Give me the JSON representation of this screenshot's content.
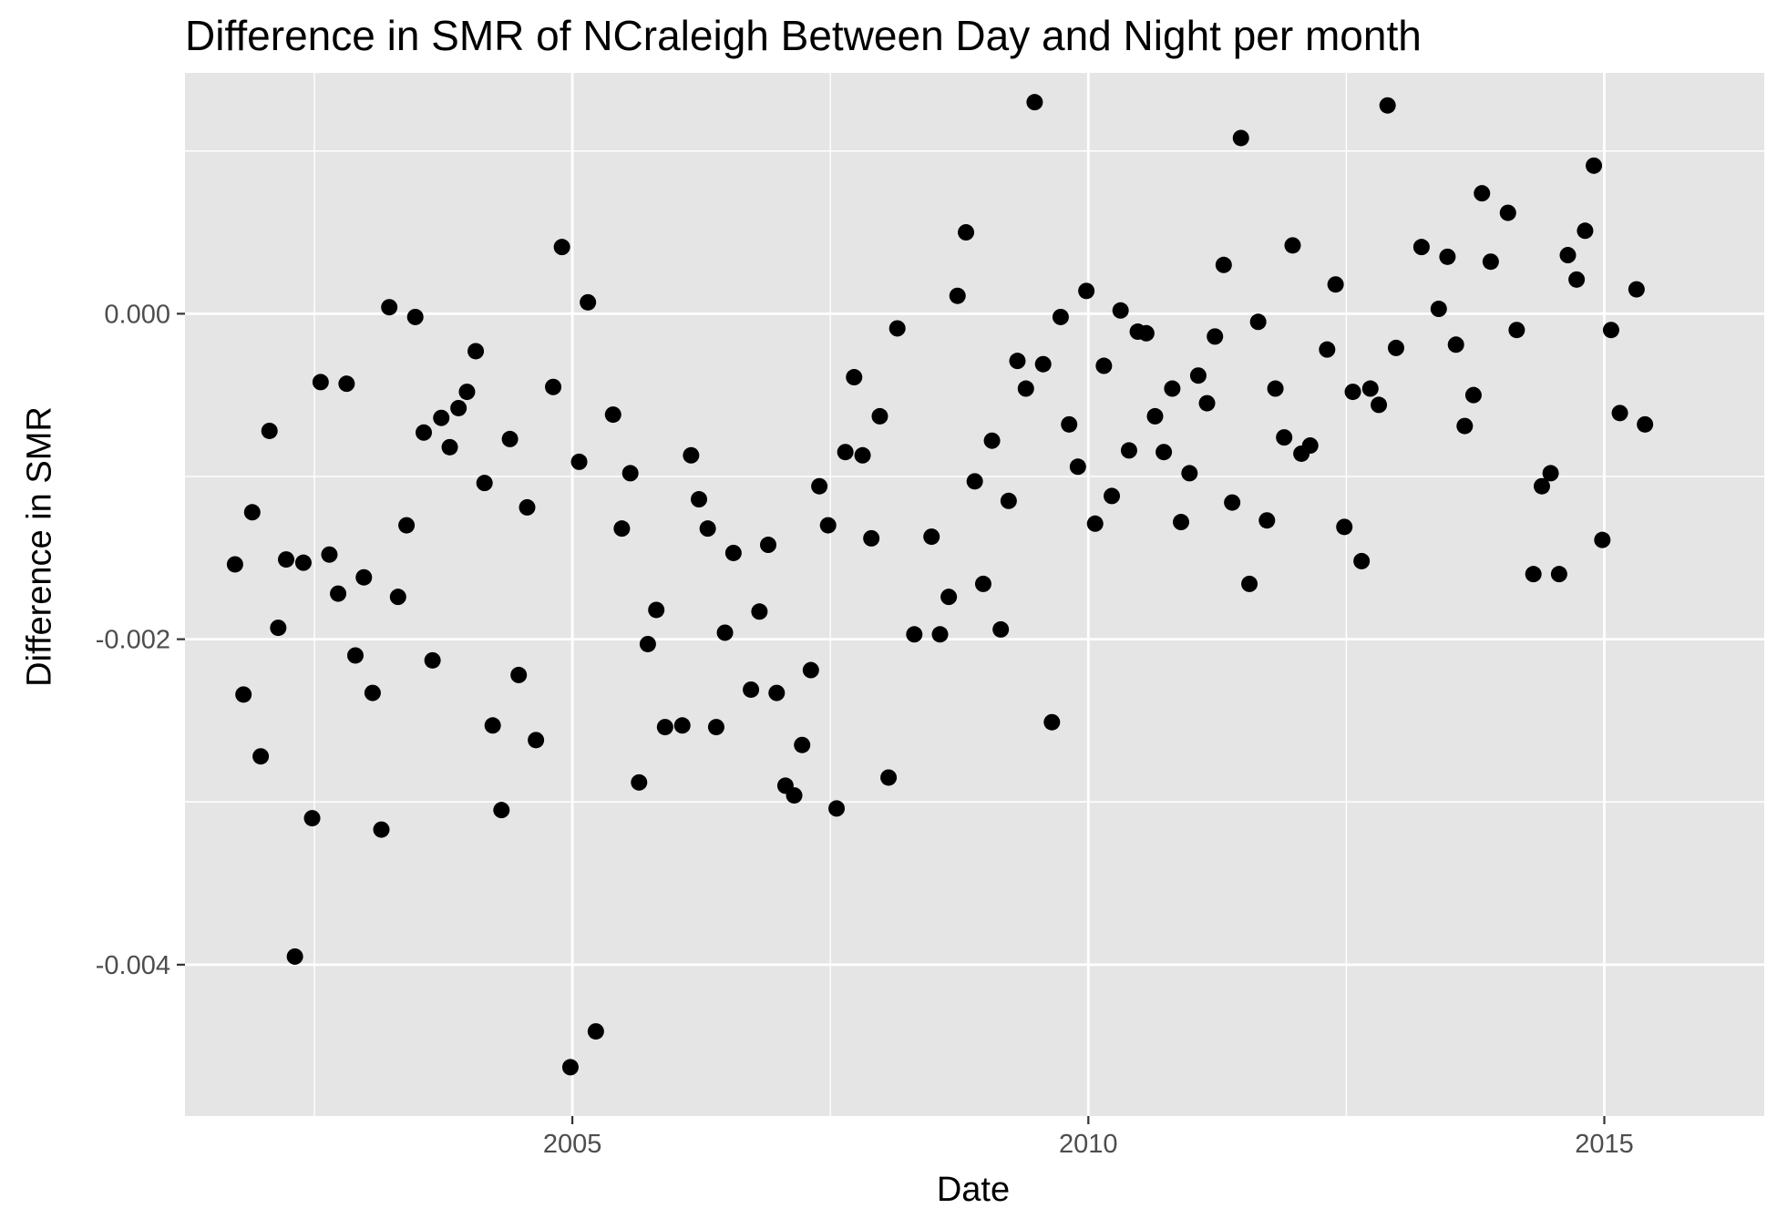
{
  "chart_data": {
    "type": "scatter",
    "title": "Difference in SMR of NCraleigh Between Day and Night per month",
    "xlabel": "Date",
    "ylabel": "Difference in SMR",
    "xlim": [
      "2001-04-01",
      "2016-07-20"
    ],
    "ylim": [
      -0.00493,
      0.00148
    ],
    "x_ticks": [
      {
        "value": "2005-01-01",
        "label": "2005"
      },
      {
        "value": "2010-01-01",
        "label": "2010"
      },
      {
        "value": "2015-01-01",
        "label": "2015"
      }
    ],
    "y_ticks": [
      {
        "value": 0.0,
        "label": "0.000"
      },
      {
        "value": -0.002,
        "label": "-0.002"
      },
      {
        "value": -0.004,
        "label": "-0.004"
      }
    ],
    "grid": true,
    "legend": "none",
    "colors": {
      "panel": "#e5e5e5",
      "grid": "#ffffff",
      "point": "#000000",
      "tick_text": "#4d4d4d"
    },
    "points": [
      {
        "x": "2001-09-25",
        "y": -0.00154
      },
      {
        "x": "2001-10-25",
        "y": -0.00234
      },
      {
        "x": "2001-11-25",
        "y": -0.00122
      },
      {
        "x": "2001-12-25",
        "y": -0.00272
      },
      {
        "x": "2002-01-25",
        "y": -0.00072
      },
      {
        "x": "2002-02-25",
        "y": -0.00193
      },
      {
        "x": "2002-03-25",
        "y": -0.00151
      },
      {
        "x": "2002-04-25",
        "y": -0.00395
      },
      {
        "x": "2002-05-25",
        "y": -0.00153
      },
      {
        "x": "2002-06-25",
        "y": -0.0031
      },
      {
        "x": "2002-07-25",
        "y": -0.00042
      },
      {
        "x": "2002-08-25",
        "y": -0.00148
      },
      {
        "x": "2002-09-25",
        "y": -0.00172
      },
      {
        "x": "2002-10-25",
        "y": -0.00043
      },
      {
        "x": "2002-11-25",
        "y": -0.0021
      },
      {
        "x": "2002-12-25",
        "y": -0.00162
      },
      {
        "x": "2003-01-25",
        "y": -0.00233
      },
      {
        "x": "2003-02-25",
        "y": -0.00317
      },
      {
        "x": "2003-03-25",
        "y": 4e-05
      },
      {
        "x": "2003-04-25",
        "y": -0.00174
      },
      {
        "x": "2003-05-25",
        "y": -0.0013
      },
      {
        "x": "2003-06-25",
        "y": -2e-05
      },
      {
        "x": "2003-07-25",
        "y": -0.00073
      },
      {
        "x": "2003-08-25",
        "y": -0.00213
      },
      {
        "x": "2003-09-25",
        "y": -0.00064
      },
      {
        "x": "2003-10-25",
        "y": -0.00082
      },
      {
        "x": "2003-11-25",
        "y": -0.00058
      },
      {
        "x": "2003-12-25",
        "y": -0.00048
      },
      {
        "x": "2004-01-25",
        "y": -0.00023
      },
      {
        "x": "2004-02-25",
        "y": -0.00104
      },
      {
        "x": "2004-03-25",
        "y": -0.00253
      },
      {
        "x": "2004-04-25",
        "y": -0.00305
      },
      {
        "x": "2004-05-25",
        "y": -0.00077
      },
      {
        "x": "2004-06-25",
        "y": -0.00222
      },
      {
        "x": "2004-07-25",
        "y": -0.00119
      },
      {
        "x": "2004-08-25",
        "y": -0.00262
      },
      {
        "x": "2004-10-25",
        "y": -0.00045
      },
      {
        "x": "2004-11-25",
        "y": 0.00041
      },
      {
        "x": "2004-12-25",
        "y": -0.00463
      },
      {
        "x": "2005-01-25",
        "y": -0.00091
      },
      {
        "x": "2005-02-25",
        "y": 7e-05
      },
      {
        "x": "2005-03-25",
        "y": -0.00441
      },
      {
        "x": "2005-05-25",
        "y": -0.00062
      },
      {
        "x": "2005-06-25",
        "y": -0.00132
      },
      {
        "x": "2005-07-25",
        "y": -0.00098
      },
      {
        "x": "2005-08-25",
        "y": -0.00288
      },
      {
        "x": "2005-09-25",
        "y": -0.00203
      },
      {
        "x": "2005-10-25",
        "y": -0.00182
      },
      {
        "x": "2005-11-25",
        "y": -0.00254
      },
      {
        "x": "2006-01-25",
        "y": -0.00253
      },
      {
        "x": "2006-02-25",
        "y": -0.00087
      },
      {
        "x": "2006-03-25",
        "y": -0.00114
      },
      {
        "x": "2006-04-25",
        "y": -0.00132
      },
      {
        "x": "2006-05-25",
        "y": -0.00254
      },
      {
        "x": "2006-06-25",
        "y": -0.00196
      },
      {
        "x": "2006-07-25",
        "y": -0.00147
      },
      {
        "x": "2006-09-25",
        "y": -0.00231
      },
      {
        "x": "2006-10-25",
        "y": -0.00183
      },
      {
        "x": "2006-11-25",
        "y": -0.00142
      },
      {
        "x": "2006-12-25",
        "y": -0.00233
      },
      {
        "x": "2007-01-25",
        "y": -0.0029
      },
      {
        "x": "2007-02-25",
        "y": -0.00296
      },
      {
        "x": "2007-03-25",
        "y": -0.00265
      },
      {
        "x": "2007-04-25",
        "y": -0.00219
      },
      {
        "x": "2007-05-25",
        "y": -0.00106
      },
      {
        "x": "2007-06-25",
        "y": -0.0013
      },
      {
        "x": "2007-07-25",
        "y": -0.00304
      },
      {
        "x": "2007-08-25",
        "y": -0.00085
      },
      {
        "x": "2007-09-25",
        "y": -0.00039
      },
      {
        "x": "2007-10-25",
        "y": -0.00087
      },
      {
        "x": "2007-11-25",
        "y": -0.00138
      },
      {
        "x": "2007-12-25",
        "y": -0.00063
      },
      {
        "x": "2008-01-25",
        "y": -0.00285
      },
      {
        "x": "2008-02-25",
        "y": -9e-05
      },
      {
        "x": "2008-04-25",
        "y": -0.00197
      },
      {
        "x": "2008-06-25",
        "y": -0.00137
      },
      {
        "x": "2008-07-25",
        "y": -0.00197
      },
      {
        "x": "2008-08-25",
        "y": -0.00174
      },
      {
        "x": "2008-09-25",
        "y": 0.00011
      },
      {
        "x": "2008-10-25",
        "y": 0.0005
      },
      {
        "x": "2008-11-25",
        "y": -0.00103
      },
      {
        "x": "2008-12-25",
        "y": -0.00166
      },
      {
        "x": "2009-01-25",
        "y": -0.00078
      },
      {
        "x": "2009-02-25",
        "y": -0.00194
      },
      {
        "x": "2009-03-25",
        "y": -0.00115
      },
      {
        "x": "2009-04-25",
        "y": -0.00029
      },
      {
        "x": "2009-05-25",
        "y": -0.00046
      },
      {
        "x": "2009-06-25",
        "y": 0.0013
      },
      {
        "x": "2009-07-25",
        "y": -0.00031
      },
      {
        "x": "2009-08-25",
        "y": -0.00251
      },
      {
        "x": "2009-09-25",
        "y": -2e-05
      },
      {
        "x": "2009-10-25",
        "y": -0.00068
      },
      {
        "x": "2009-11-25",
        "y": -0.00094
      },
      {
        "x": "2009-12-25",
        "y": 0.00014
      },
      {
        "x": "2010-01-25",
        "y": -0.00129
      },
      {
        "x": "2010-02-25",
        "y": -0.00032
      },
      {
        "x": "2010-03-25",
        "y": -0.00112
      },
      {
        "x": "2010-04-25",
        "y": 2e-05
      },
      {
        "x": "2010-05-25",
        "y": -0.00084
      },
      {
        "x": "2010-06-25",
        "y": -0.00011
      },
      {
        "x": "2010-07-25",
        "y": -0.00012
      },
      {
        "x": "2010-08-25",
        "y": -0.00063
      },
      {
        "x": "2010-09-25",
        "y": -0.00085
      },
      {
        "x": "2010-10-25",
        "y": -0.00046
      },
      {
        "x": "2010-11-25",
        "y": -0.00128
      },
      {
        "x": "2010-12-25",
        "y": -0.00098
      },
      {
        "x": "2011-01-25",
        "y": -0.00038
      },
      {
        "x": "2011-02-25",
        "y": -0.00055
      },
      {
        "x": "2011-03-25",
        "y": -0.00014
      },
      {
        "x": "2011-04-25",
        "y": 0.0003
      },
      {
        "x": "2011-05-25",
        "y": -0.00116
      },
      {
        "x": "2011-06-25",
        "y": 0.00108
      },
      {
        "x": "2011-07-25",
        "y": -0.00166
      },
      {
        "x": "2011-08-25",
        "y": -5e-05
      },
      {
        "x": "2011-09-25",
        "y": -0.00127
      },
      {
        "x": "2011-10-25",
        "y": -0.00046
      },
      {
        "x": "2011-11-25",
        "y": -0.00076
      },
      {
        "x": "2011-12-25",
        "y": 0.00042
      },
      {
        "x": "2012-01-25",
        "y": -0.00086
      },
      {
        "x": "2012-02-25",
        "y": -0.00081
      },
      {
        "x": "2012-04-25",
        "y": -0.00022
      },
      {
        "x": "2012-05-25",
        "y": 0.00018
      },
      {
        "x": "2012-06-25",
        "y": -0.00131
      },
      {
        "x": "2012-07-25",
        "y": -0.00048
      },
      {
        "x": "2012-08-25",
        "y": -0.00152
      },
      {
        "x": "2012-09-25",
        "y": -0.00046
      },
      {
        "x": "2012-10-25",
        "y": -0.00056
      },
      {
        "x": "2012-11-25",
        "y": 0.00128
      },
      {
        "x": "2012-12-25",
        "y": -0.00021
      },
      {
        "x": "2013-03-25",
        "y": 0.00041
      },
      {
        "x": "2013-05-25",
        "y": 3e-05
      },
      {
        "x": "2013-06-25",
        "y": 0.00035
      },
      {
        "x": "2013-07-25",
        "y": -0.00019
      },
      {
        "x": "2013-08-25",
        "y": -0.00069
      },
      {
        "x": "2013-09-25",
        "y": -0.0005
      },
      {
        "x": "2013-10-25",
        "y": 0.00074
      },
      {
        "x": "2013-11-25",
        "y": 0.00032
      },
      {
        "x": "2014-01-25",
        "y": 0.00062
      },
      {
        "x": "2014-02-25",
        "y": -0.0001
      },
      {
        "x": "2014-04-25",
        "y": -0.0016
      },
      {
        "x": "2014-05-25",
        "y": -0.00106
      },
      {
        "x": "2014-06-25",
        "y": -0.00098
      },
      {
        "x": "2014-07-25",
        "y": -0.0016
      },
      {
        "x": "2014-08-25",
        "y": 0.00036
      },
      {
        "x": "2014-09-25",
        "y": 0.00021
      },
      {
        "x": "2014-10-25",
        "y": 0.00051
      },
      {
        "x": "2014-11-25",
        "y": 0.00091
      },
      {
        "x": "2014-12-25",
        "y": -0.00139
      },
      {
        "x": "2015-01-25",
        "y": -0.0001
      },
      {
        "x": "2015-02-25",
        "y": -0.00061
      },
      {
        "x": "2015-04-25",
        "y": 0.00015
      },
      {
        "x": "2015-05-25",
        "y": -0.00068
      }
    ]
  }
}
